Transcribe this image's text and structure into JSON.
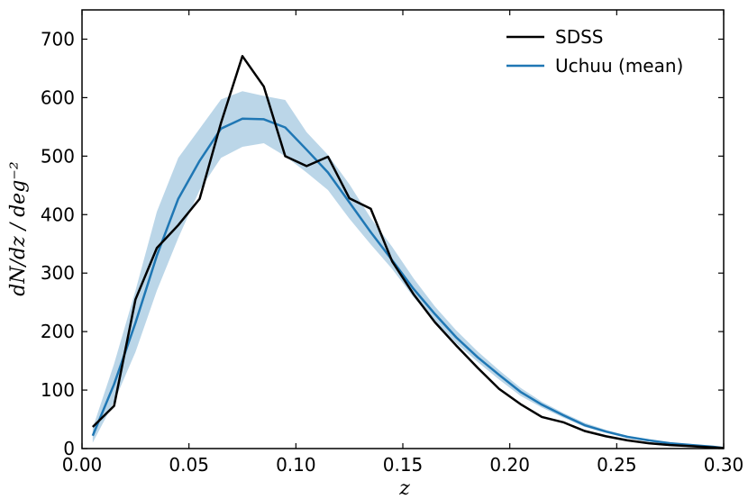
{
  "chart_data": {
    "type": "line",
    "title": "",
    "xlabel": "z",
    "ylabel": "dN/dz / deg⁻²",
    "xlim": [
      0.0,
      0.3
    ],
    "ylim": [
      0,
      750
    ],
    "xticks": [
      0.0,
      0.05,
      0.1,
      0.15,
      0.2,
      0.25,
      0.3
    ],
    "xtick_labels": [
      "0.00",
      "0.05",
      "0.10",
      "0.15",
      "0.20",
      "0.25",
      "0.30"
    ],
    "yticks": [
      0,
      100,
      200,
      300,
      400,
      500,
      600,
      700
    ],
    "ytick_labels": [
      "0",
      "100",
      "200",
      "300",
      "400",
      "500",
      "600",
      "700"
    ],
    "grid": false,
    "legend_position": "top-right",
    "series": [
      {
        "name": "SDSS",
        "color": "#000000",
        "x": [
          0.005,
          0.015,
          0.025,
          0.035,
          0.045,
          0.055,
          0.065,
          0.075,
          0.085,
          0.095,
          0.105,
          0.115,
          0.125,
          0.135,
          0.145,
          0.155,
          0.165,
          0.175,
          0.185,
          0.195,
          0.205,
          0.215,
          0.225,
          0.235,
          0.245,
          0.255,
          0.265,
          0.275,
          0.285,
          0.295,
          0.3
        ],
        "values": [
          37,
          73,
          255,
          343,
          382,
          427,
          557,
          671,
          619,
          500,
          483,
          499,
          428,
          410,
          320,
          264,
          216,
          176,
          138,
          102,
          76,
          54,
          45,
          30,
          21,
          14,
          9,
          6,
          4,
          2,
          1
        ]
      },
      {
        "name": "Uchuu (mean)",
        "color": "#1f77b4",
        "x": [
          0.005,
          0.015,
          0.025,
          0.035,
          0.045,
          0.055,
          0.065,
          0.075,
          0.085,
          0.095,
          0.105,
          0.115,
          0.125,
          0.135,
          0.145,
          0.155,
          0.165,
          0.175,
          0.185,
          0.195,
          0.205,
          0.215,
          0.225,
          0.235,
          0.245,
          0.255,
          0.265,
          0.275,
          0.285,
          0.295,
          0.3
        ],
        "values": [
          22,
          110,
          215,
          330,
          427,
          492,
          547,
          564,
          563,
          549,
          511,
          472,
          421,
          370,
          322,
          273,
          230,
          190,
          156,
          126,
          97,
          75,
          57,
          40,
          29,
          20,
          14,
          9,
          6,
          3,
          1
        ],
        "band_lower": [
          10,
          80,
          165,
          270,
          360,
          442,
          497,
          516,
          522,
          500,
          472,
          442,
          393,
          349,
          307,
          259,
          218,
          180,
          148,
          118,
          90,
          70,
          53,
          37,
          27,
          18,
          12,
          8,
          5,
          2,
          1
        ],
        "band_upper": [
          35,
          145,
          270,
          405,
          497,
          547,
          597,
          611,
          603,
          596,
          541,
          502,
          452,
          394,
          345,
          291,
          243,
          202,
          166,
          134,
          104,
          80,
          61,
          44,
          32,
          22,
          16,
          10,
          7,
          4,
          2
        ]
      }
    ]
  }
}
